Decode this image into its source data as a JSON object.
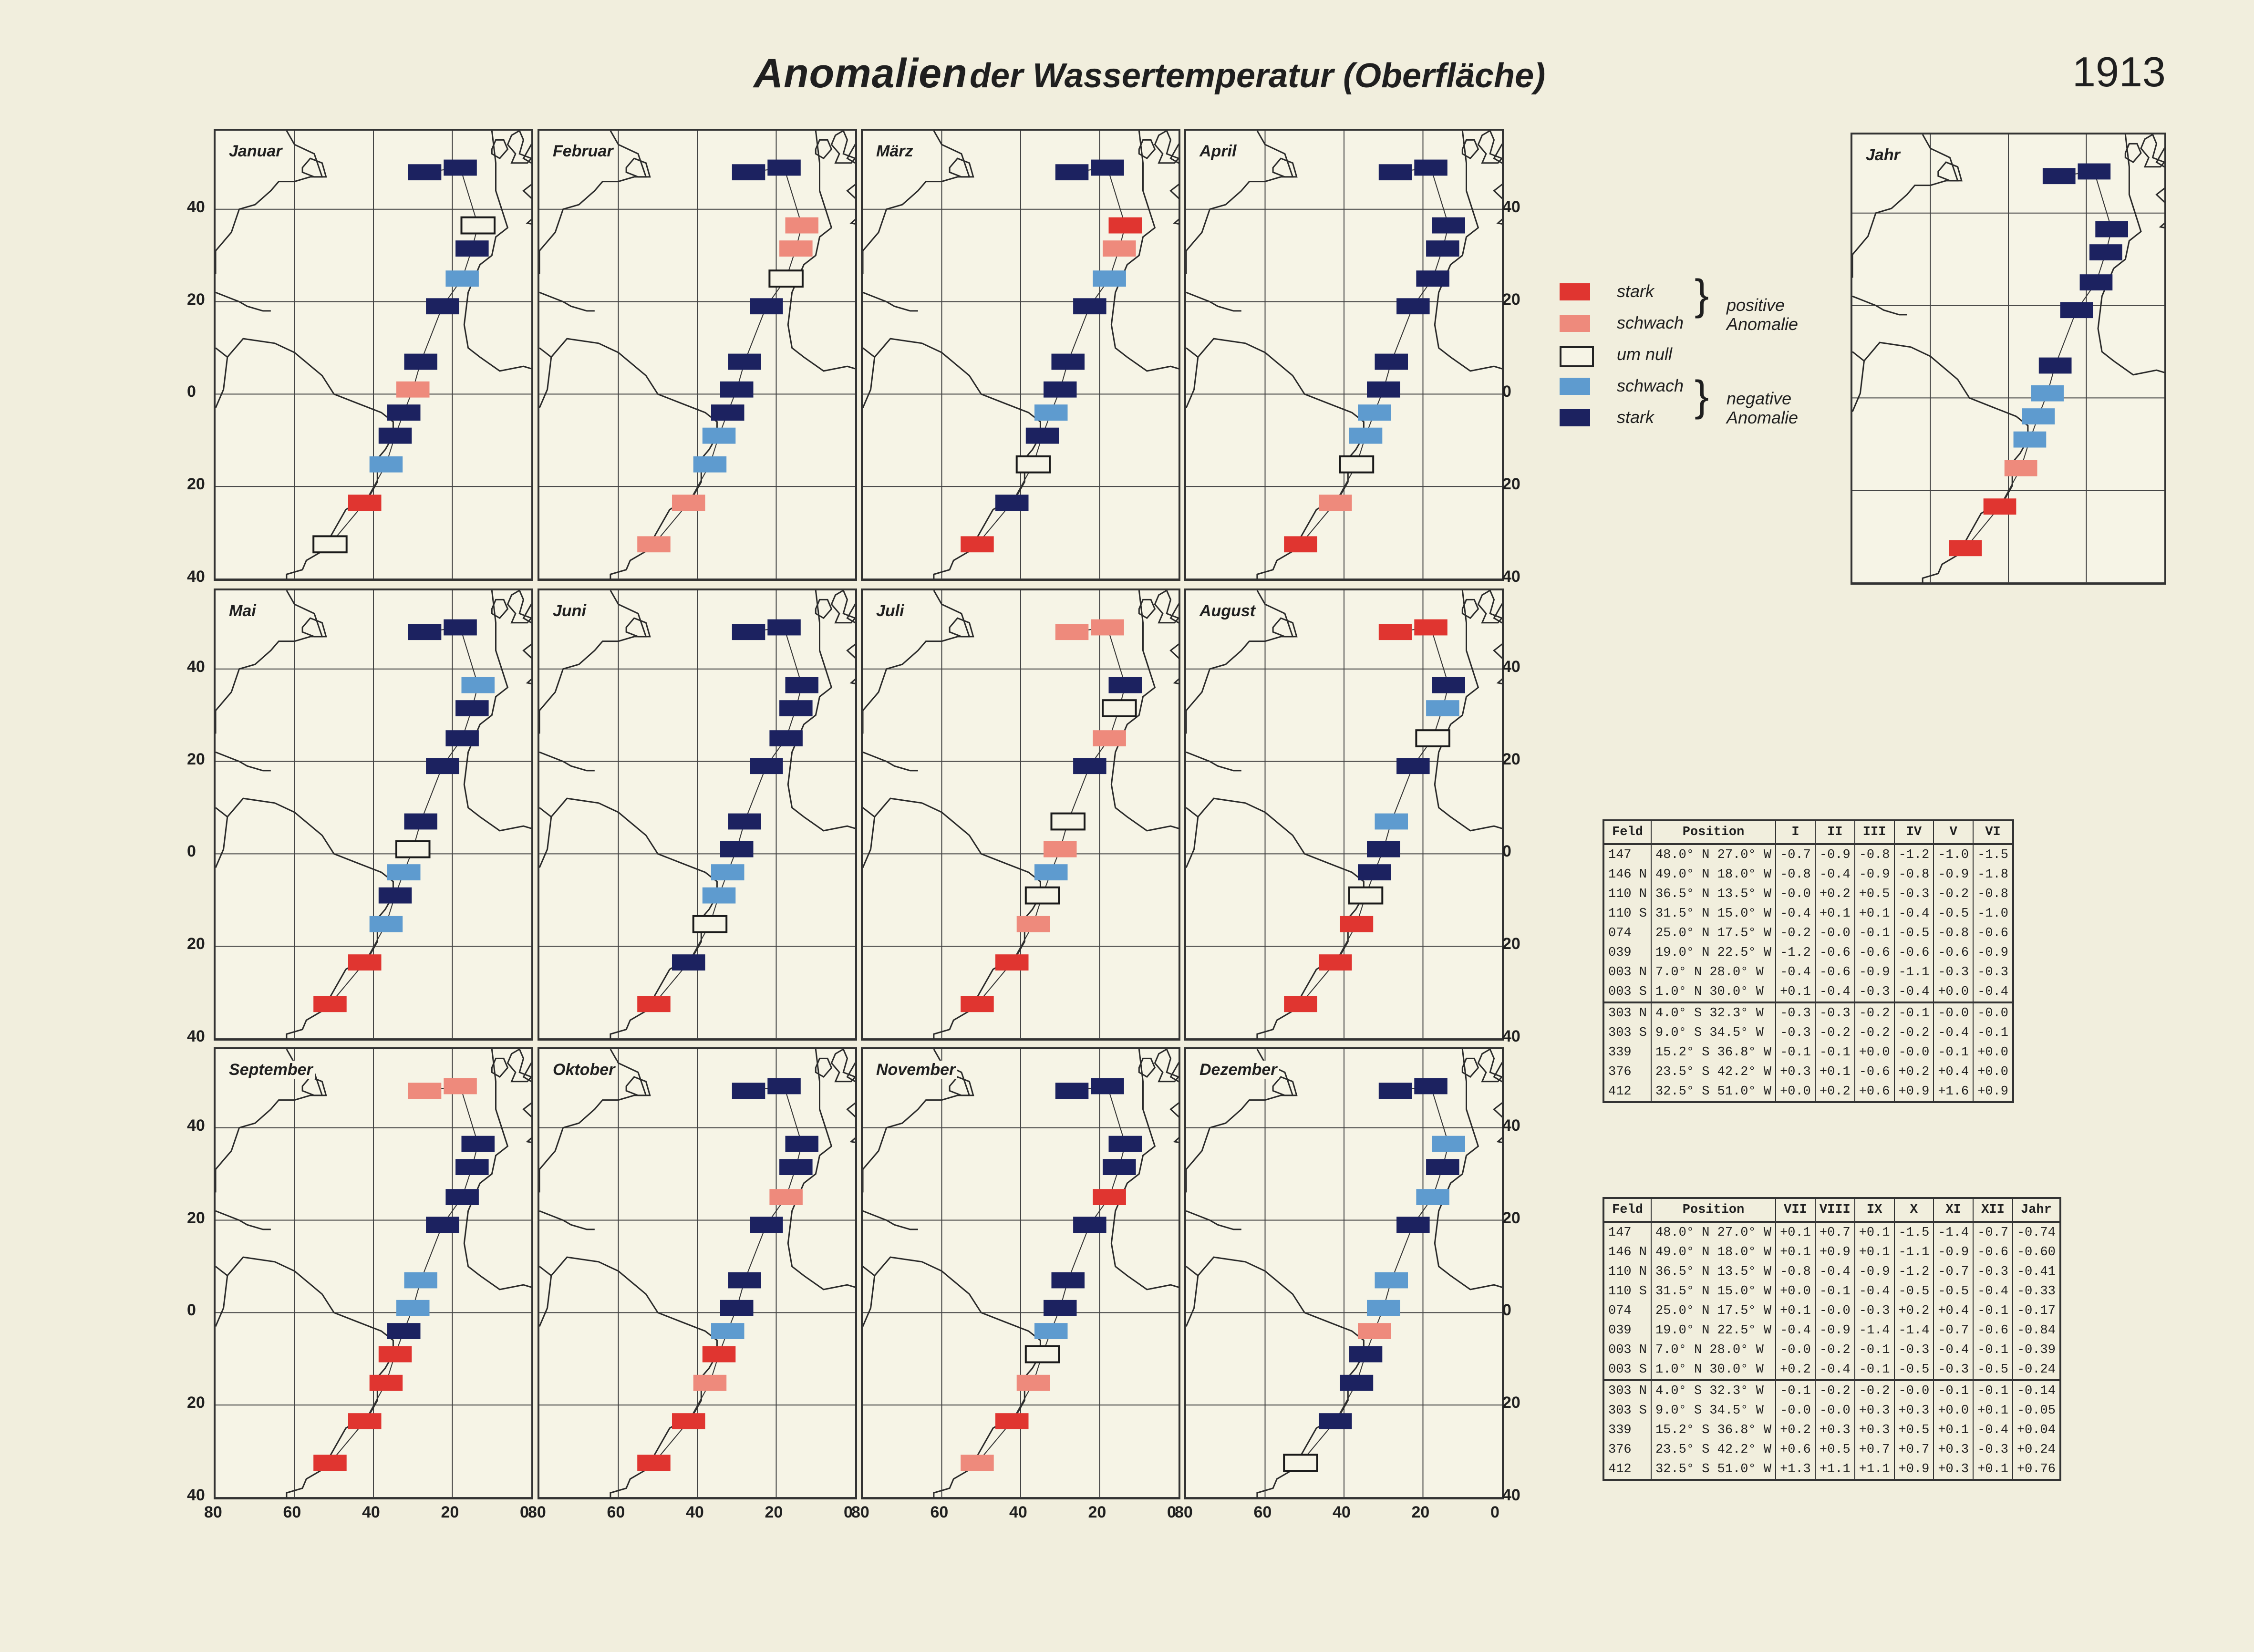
{
  "header": {
    "title_main": "Anomalien",
    "title_rest": "der Wassertemperatur (Oberfläche)",
    "year": "1913"
  },
  "colors": {
    "strong_positive": "#e03530",
    "weak_positive": "#ee8a7c",
    "near_zero": "#f6f4e6",
    "weak_negative": "#5e9bcf",
    "strong_negative": "#1c2260",
    "paper": "#f1eedd",
    "ink": "#222222"
  },
  "chart_data": {
    "type": "map-anomaly-grid",
    "title": "Anomalien der Wassertemperatur (Oberfläche) 1913",
    "lat_ticks": [
      "40",
      "20",
      "0",
      "20",
      "40"
    ],
    "lon_ticks": [
      "80",
      "60",
      "40",
      "20",
      "0"
    ],
    "class_legend": {
      "P": "stark (positive Anomalie)",
      "p": "schwach (positive Anomalie)",
      "N": "um null",
      "n": "schwach (negative Anomalie)",
      "S": "stark (negative Anomalie)"
    },
    "stations": [
      "147",
      "146 N",
      "110 N",
      "110 S",
      "074",
      "039",
      "003 N",
      "003 S",
      "303 N",
      "303 S",
      "339",
      "376",
      "412"
    ],
    "panels": [
      {
        "label": "Januar",
        "classes": [
          "S",
          "S",
          "N",
          "S",
          "n",
          "S",
          "S",
          "p",
          "S",
          "S",
          "n",
          "P",
          "N"
        ]
      },
      {
        "label": "Februar",
        "classes": [
          "S",
          "S",
          "p",
          "p",
          "N",
          "S",
          "S",
          "S",
          "S",
          "n",
          "n",
          "p",
          "p"
        ]
      },
      {
        "label": "März",
        "classes": [
          "S",
          "S",
          "P",
          "p",
          "n",
          "S",
          "S",
          "S",
          "n",
          "S",
          "N",
          "S",
          "P"
        ]
      },
      {
        "label": "April",
        "classes": [
          "S",
          "S",
          "S",
          "S",
          "S",
          "S",
          "S",
          "S",
          "n",
          "n",
          "N",
          "p",
          "P"
        ]
      },
      {
        "label": "Mai",
        "classes": [
          "S",
          "S",
          "n",
          "S",
          "S",
          "S",
          "S",
          "N",
          "n",
          "S",
          "n",
          "P",
          "P"
        ]
      },
      {
        "label": "Juni",
        "classes": [
          "S",
          "S",
          "S",
          "S",
          "S",
          "S",
          "S",
          "S",
          "n",
          "n",
          "N",
          "S",
          "P"
        ]
      },
      {
        "label": "Juli",
        "classes": [
          "p",
          "p",
          "S",
          "N",
          "p",
          "S",
          "N",
          "p",
          "n",
          "N",
          "p",
          "P",
          "P"
        ]
      },
      {
        "label": "August",
        "classes": [
          "P",
          "P",
          "S",
          "n",
          "N",
          "S",
          "n",
          "S",
          "S",
          "N",
          "P",
          "P",
          "P"
        ]
      },
      {
        "label": "September",
        "classes": [
          "p",
          "p",
          "S",
          "S",
          "S",
          "S",
          "n",
          "n",
          "S",
          "P",
          "P",
          "P",
          "P"
        ]
      },
      {
        "label": "Oktober",
        "classes": [
          "S",
          "S",
          "S",
          "S",
          "p",
          "S",
          "S",
          "S",
          "n",
          "P",
          "p",
          "P",
          "P"
        ]
      },
      {
        "label": "November",
        "classes": [
          "S",
          "S",
          "S",
          "S",
          "P",
          "S",
          "S",
          "S",
          "n",
          "N",
          "p",
          "P",
          "p"
        ]
      },
      {
        "label": "Dezember",
        "classes": [
          "S",
          "S",
          "n",
          "S",
          "n",
          "S",
          "n",
          "n",
          "p",
          "S",
          "S",
          "S",
          "N"
        ]
      },
      {
        "label": "Jahr",
        "classes": [
          "S",
          "S",
          "S",
          "S",
          "S",
          "S",
          "S",
          "n",
          "n",
          "n",
          "p",
          "P",
          "P"
        ]
      }
    ]
  },
  "legend": {
    "items": [
      {
        "label": "stark",
        "cls": "P"
      },
      {
        "label": "schwach",
        "cls": "p"
      },
      {
        "label": "um null",
        "cls": "N"
      },
      {
        "label": "schwach",
        "cls": "n"
      },
      {
        "label": "stark",
        "cls": "S"
      }
    ],
    "positive_line1": "positive",
    "positive_line2": "Anomalie",
    "negative_line1": "negative",
    "negative_line2": "Anomalie"
  },
  "table1": {
    "headers": [
      "Feld",
      "Position",
      "I",
      "II",
      "III",
      "IV",
      "V",
      "VI"
    ],
    "rows": [
      [
        "147",
        "48.0° N 27.0° W",
        "-0.7",
        "-0.9",
        "-0.8",
        "-1.2",
        "-1.0",
        "-1.5"
      ],
      [
        "146 N",
        "49.0° N 18.0° W",
        "-0.8",
        "-0.4",
        "-0.9",
        "-0.8",
        "-0.9",
        "-1.8"
      ],
      [
        "110 N",
        "36.5° N 13.5° W",
        "-0.0",
        "+0.2",
        "+0.5",
        "-0.3",
        "-0.2",
        "-0.8"
      ],
      [
        "110 S",
        "31.5° N 15.0° W",
        "-0.4",
        "+0.1",
        "+0.1",
        "-0.4",
        "-0.5",
        "-1.0"
      ],
      [
        "074",
        "25.0° N 17.5° W",
        "-0.2",
        "-0.0",
        "-0.1",
        "-0.5",
        "-0.8",
        "-0.6"
      ],
      [
        "039",
        "19.0° N 22.5° W",
        "-1.2",
        "-0.6",
        "-0.6",
        "-0.6",
        "-0.6",
        "-0.9"
      ],
      [
        "003 N",
        "7.0° N 28.0° W",
        "-0.4",
        "-0.6",
        "-0.9",
        "-1.1",
        "-0.3",
        "-0.3"
      ],
      [
        "003 S",
        "1.0° N 30.0° W",
        "+0.1",
        "-0.4",
        "-0.3",
        "-0.4",
        "+0.0",
        "-0.4"
      ],
      [
        "303 N",
        "4.0° S 32.3° W",
        "-0.3",
        "-0.3",
        "-0.2",
        "-0.1",
        "-0.0",
        "-0.0"
      ],
      [
        "303 S",
        "9.0° S 34.5° W",
        "-0.3",
        "-0.2",
        "-0.2",
        "-0.2",
        "-0.4",
        "-0.1"
      ],
      [
        "339",
        "15.2° S 36.8° W",
        "-0.1",
        "-0.1",
        "+0.0",
        "-0.0",
        "-0.1",
        "+0.0"
      ],
      [
        "376",
        "23.5° S 42.2° W",
        "+0.3",
        "+0.1",
        "-0.6",
        "+0.2",
        "+0.4",
        "+0.0"
      ],
      [
        "412",
        "32.5° S 51.0° W",
        "+0.0",
        "+0.2",
        "+0.6",
        "+0.9",
        "+1.6",
        "+0.9"
      ]
    ]
  },
  "table2": {
    "headers": [
      "Feld",
      "Position",
      "VII",
      "VIII",
      "IX",
      "X",
      "XI",
      "XII",
      "Jahr"
    ],
    "rows": [
      [
        "147",
        "48.0° N 27.0° W",
        "+0.1",
        "+0.7",
        "+0.1",
        "-1.5",
        "-1.4",
        "-0.7",
        "-0.74"
      ],
      [
        "146 N",
        "49.0° N 18.0° W",
        "+0.1",
        "+0.9",
        "+0.1",
        "-1.1",
        "-0.9",
        "-0.6",
        "-0.60"
      ],
      [
        "110 N",
        "36.5° N 13.5° W",
        "-0.8",
        "-0.4",
        "-0.9",
        "-1.2",
        "-0.7",
        "-0.3",
        "-0.41"
      ],
      [
        "110 S",
        "31.5° N 15.0° W",
        "+0.0",
        "-0.1",
        "-0.4",
        "-0.5",
        "-0.5",
        "-0.4",
        "-0.33"
      ],
      [
        "074",
        "25.0° N 17.5° W",
        "+0.1",
        "-0.0",
        "-0.3",
        "+0.2",
        "+0.4",
        "-0.1",
        "-0.17"
      ],
      [
        "039",
        "19.0° N 22.5° W",
        "-0.4",
        "-0.9",
        "-1.4",
        "-1.4",
        "-0.7",
        "-0.6",
        "-0.84"
      ],
      [
        "003 N",
        "7.0° N 28.0° W",
        "-0.0",
        "-0.2",
        "-0.1",
        "-0.3",
        "-0.4",
        "-0.1",
        "-0.39"
      ],
      [
        "003 S",
        "1.0° N 30.0° W",
        "+0.2",
        "-0.4",
        "-0.1",
        "-0.5",
        "-0.3",
        "-0.5",
        "-0.24"
      ],
      [
        "303 N",
        "4.0° S 32.3° W",
        "-0.1",
        "-0.2",
        "-0.2",
        "-0.0",
        "-0.1",
        "-0.1",
        "-0.14"
      ],
      [
        "303 S",
        "9.0° S 34.5° W",
        "-0.0",
        "-0.0",
        "+0.3",
        "+0.3",
        "+0.0",
        "+0.1",
        "-0.05"
      ],
      [
        "339",
        "15.2° S 36.8° W",
        "+0.2",
        "+0.3",
        "+0.3",
        "+0.5",
        "+0.1",
        "-0.4",
        "+0.04"
      ],
      [
        "376",
        "23.5° S 42.2° W",
        "+0.6",
        "+0.5",
        "+0.7",
        "+0.7",
        "+0.3",
        "-0.3",
        "+0.24"
      ],
      [
        "412",
        "32.5° S 51.0° W",
        "+1.3",
        "+1.1",
        "+1.1",
        "+0.9",
        "+0.3",
        "+0.1",
        "+0.76"
      ]
    ]
  }
}
